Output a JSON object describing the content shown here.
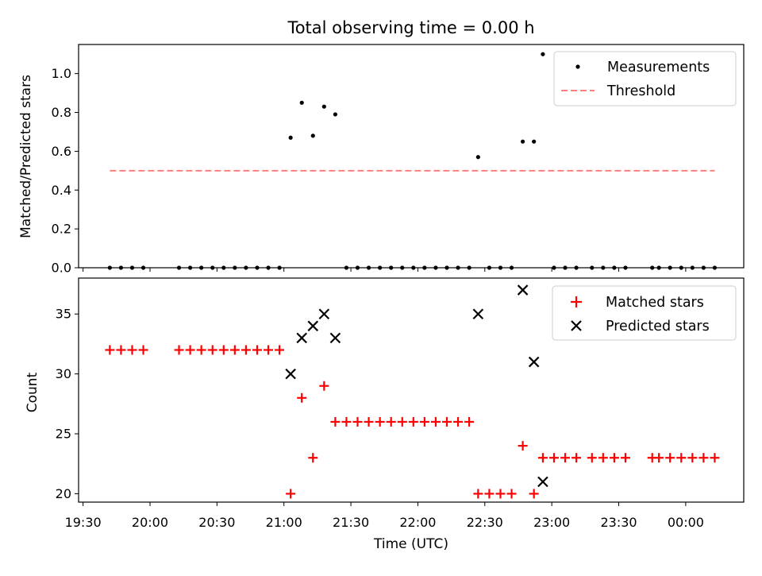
{
  "chart_data": [
    {
      "type": "scatter",
      "title": "Total observing time = 0.00 h",
      "xlabel": "",
      "ylabel": "Matched/Predicted stars",
      "xlim": [
        "19:28",
        "00:26"
      ],
      "ylim": [
        0.0,
        1.15
      ],
      "yticks": [
        "0.0",
        "0.2",
        "0.4",
        "0.6",
        "0.8",
        "1.0"
      ],
      "legend_position": "top-right",
      "grid": false,
      "series": [
        {
          "name": "Measurements",
          "color": "#000000",
          "marker": "dot",
          "points": [
            [
              "19:42",
              0
            ],
            [
              "19:47",
              0
            ],
            [
              "19:52",
              0
            ],
            [
              "19:57",
              0
            ],
            [
              "20:13",
              0
            ],
            [
              "20:18",
              0
            ],
            [
              "20:23",
              0
            ],
            [
              "20:28",
              0
            ],
            [
              "20:33",
              0
            ],
            [
              "20:38",
              0
            ],
            [
              "20:43",
              0
            ],
            [
              "20:48",
              0
            ],
            [
              "20:53",
              0
            ],
            [
              "20:58",
              0
            ],
            [
              "21:03",
              0.67
            ],
            [
              "21:08",
              0.85
            ],
            [
              "21:13",
              0.68
            ],
            [
              "21:18",
              0.83
            ],
            [
              "21:23",
              0.79
            ],
            [
              "21:28",
              0
            ],
            [
              "21:33",
              0
            ],
            [
              "21:38",
              0
            ],
            [
              "21:43",
              0
            ],
            [
              "21:48",
              0
            ],
            [
              "21:53",
              0
            ],
            [
              "21:58",
              0
            ],
            [
              "22:03",
              0
            ],
            [
              "22:08",
              0
            ],
            [
              "22:13",
              0
            ],
            [
              "22:18",
              0
            ],
            [
              "22:23",
              0
            ],
            [
              "22:27",
              0.57
            ],
            [
              "22:32",
              0
            ],
            [
              "22:37",
              0
            ],
            [
              "22:42",
              0
            ],
            [
              "22:47",
              0.65
            ],
            [
              "22:52",
              0.65
            ],
            [
              "22:56",
              1.1
            ],
            [
              "23:01",
              0
            ],
            [
              "23:06",
              0
            ],
            [
              "23:11",
              0
            ],
            [
              "23:18",
              0
            ],
            [
              "23:23",
              0
            ],
            [
              "23:28",
              0
            ],
            [
              "23:33",
              0
            ],
            [
              "23:45",
              0
            ],
            [
              "23:48",
              0
            ],
            [
              "23:53",
              0
            ],
            [
              "23:58",
              0
            ],
            [
              "00:03",
              0
            ],
            [
              "00:08",
              0
            ],
            [
              "00:13",
              0
            ]
          ]
        },
        {
          "name": "Threshold",
          "color": "#ff7f7f",
          "style": "dashed",
          "points": [
            [
              "19:42",
              0.5
            ],
            [
              "00:13",
              0.5
            ]
          ]
        }
      ]
    },
    {
      "type": "scatter",
      "title": "",
      "xlabel": "Time (UTC)",
      "ylabel": "Count",
      "xlim": [
        "19:28",
        "00:26"
      ],
      "ylim": [
        19.3,
        38
      ],
      "yticks": [
        "20",
        "25",
        "30",
        "35"
      ],
      "xticks": [
        "19:30",
        "20:00",
        "20:30",
        "21:00",
        "21:30",
        "22:00",
        "22:30",
        "23:00",
        "23:30",
        "00:00"
      ],
      "legend_position": "top-right",
      "grid": false,
      "series": [
        {
          "name": "Matched stars",
          "color": "#ff0000",
          "marker": "plus",
          "points": [
            [
              "19:42",
              32
            ],
            [
              "19:47",
              32
            ],
            [
              "19:52",
              32
            ],
            [
              "19:57",
              32
            ],
            [
              "20:13",
              32
            ],
            [
              "20:18",
              32
            ],
            [
              "20:23",
              32
            ],
            [
              "20:28",
              32
            ],
            [
              "20:33",
              32
            ],
            [
              "20:38",
              32
            ],
            [
              "20:43",
              32
            ],
            [
              "20:48",
              32
            ],
            [
              "20:53",
              32
            ],
            [
              "20:58",
              32
            ],
            [
              "21:03",
              20
            ],
            [
              "21:08",
              28
            ],
            [
              "21:13",
              23
            ],
            [
              "21:18",
              29
            ],
            [
              "21:23",
              26
            ],
            [
              "21:28",
              26
            ],
            [
              "21:33",
              26
            ],
            [
              "21:38",
              26
            ],
            [
              "21:43",
              26
            ],
            [
              "21:48",
              26
            ],
            [
              "21:53",
              26
            ],
            [
              "21:58",
              26
            ],
            [
              "22:03",
              26
            ],
            [
              "22:08",
              26
            ],
            [
              "22:13",
              26
            ],
            [
              "22:18",
              26
            ],
            [
              "22:23",
              26
            ],
            [
              "22:27",
              20
            ],
            [
              "22:32",
              20
            ],
            [
              "22:37",
              20
            ],
            [
              "22:42",
              20
            ],
            [
              "22:47",
              24
            ],
            [
              "22:52",
              20
            ],
            [
              "22:56",
              23
            ],
            [
              "23:01",
              23
            ],
            [
              "23:06",
              23
            ],
            [
              "23:11",
              23
            ],
            [
              "23:18",
              23
            ],
            [
              "23:23",
              23
            ],
            [
              "23:28",
              23
            ],
            [
              "23:33",
              23
            ],
            [
              "23:45",
              23
            ],
            [
              "23:48",
              23
            ],
            [
              "23:53",
              23
            ],
            [
              "23:58",
              23
            ],
            [
              "00:03",
              23
            ],
            [
              "00:08",
              23
            ],
            [
              "00:13",
              23
            ]
          ]
        },
        {
          "name": "Predicted stars",
          "color": "#000000",
          "marker": "x",
          "points": [
            [
              "21:03",
              30
            ],
            [
              "21:08",
              33
            ],
            [
              "21:13",
              34
            ],
            [
              "21:18",
              35
            ],
            [
              "21:23",
              33
            ],
            [
              "22:27",
              35
            ],
            [
              "22:47",
              37
            ],
            [
              "22:52",
              31
            ],
            [
              "22:56",
              21
            ]
          ]
        }
      ]
    }
  ]
}
